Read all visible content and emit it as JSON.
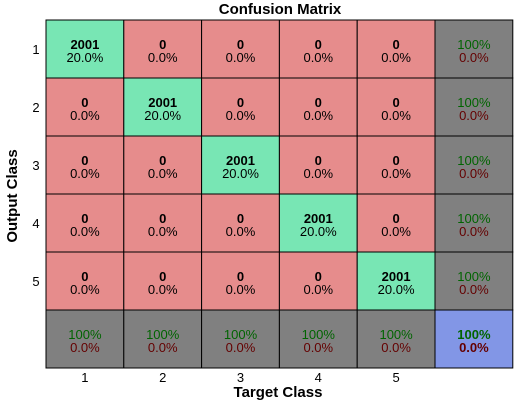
{
  "chart_data": {
    "type": "heatmap",
    "title": "Confusion Matrix",
    "xlabel": "Target Class",
    "ylabel": "Output Class",
    "x_categories": [
      "1",
      "2",
      "3",
      "4",
      "5"
    ],
    "y_categories": [
      "1",
      "2",
      "3",
      "4",
      "5"
    ],
    "matrix": [
      [
        2001,
        0,
        0,
        0,
        0
      ],
      [
        0,
        2001,
        0,
        0,
        0
      ],
      [
        0,
        0,
        2001,
        0,
        0
      ],
      [
        0,
        0,
        0,
        2001,
        0
      ],
      [
        0,
        0,
        0,
        0,
        2001
      ]
    ],
    "matrix_percent_labels": [
      [
        "20.0%",
        "0.0%",
        "0.0%",
        "0.0%",
        "0.0%"
      ],
      [
        "0.0%",
        "20.0%",
        "0.0%",
        "0.0%",
        "0.0%"
      ],
      [
        "0.0%",
        "0.0%",
        "20.0%",
        "0.0%",
        "0.0%"
      ],
      [
        "0.0%",
        "0.0%",
        "0.0%",
        "20.0%",
        "0.0%"
      ],
      [
        "0.0%",
        "0.0%",
        "0.0%",
        "0.0%",
        "20.0%"
      ]
    ],
    "row_summary": [
      {
        "correct": "100%",
        "incorrect": "0.0%"
      },
      {
        "correct": "100%",
        "incorrect": "0.0%"
      },
      {
        "correct": "100%",
        "incorrect": "0.0%"
      },
      {
        "correct": "100%",
        "incorrect": "0.0%"
      },
      {
        "correct": "100%",
        "incorrect": "0.0%"
      }
    ],
    "column_summary": [
      {
        "correct": "100%",
        "incorrect": "0.0%"
      },
      {
        "correct": "100%",
        "incorrect": "0.0%"
      },
      {
        "correct": "100%",
        "incorrect": "0.0%"
      },
      {
        "correct": "100%",
        "incorrect": "0.0%"
      },
      {
        "correct": "100%",
        "incorrect": "0.0%"
      }
    ],
    "overall": {
      "correct": "100%",
      "incorrect": "0.0%"
    },
    "colors": {
      "diagonal": "#78e6b4",
      "off_diagonal": "#e68c8c",
      "summary": "#808080",
      "overall": "#8296e6",
      "grid_line": "#000000",
      "correct_text": "#006400",
      "incorrect_text": "#640000"
    }
  }
}
